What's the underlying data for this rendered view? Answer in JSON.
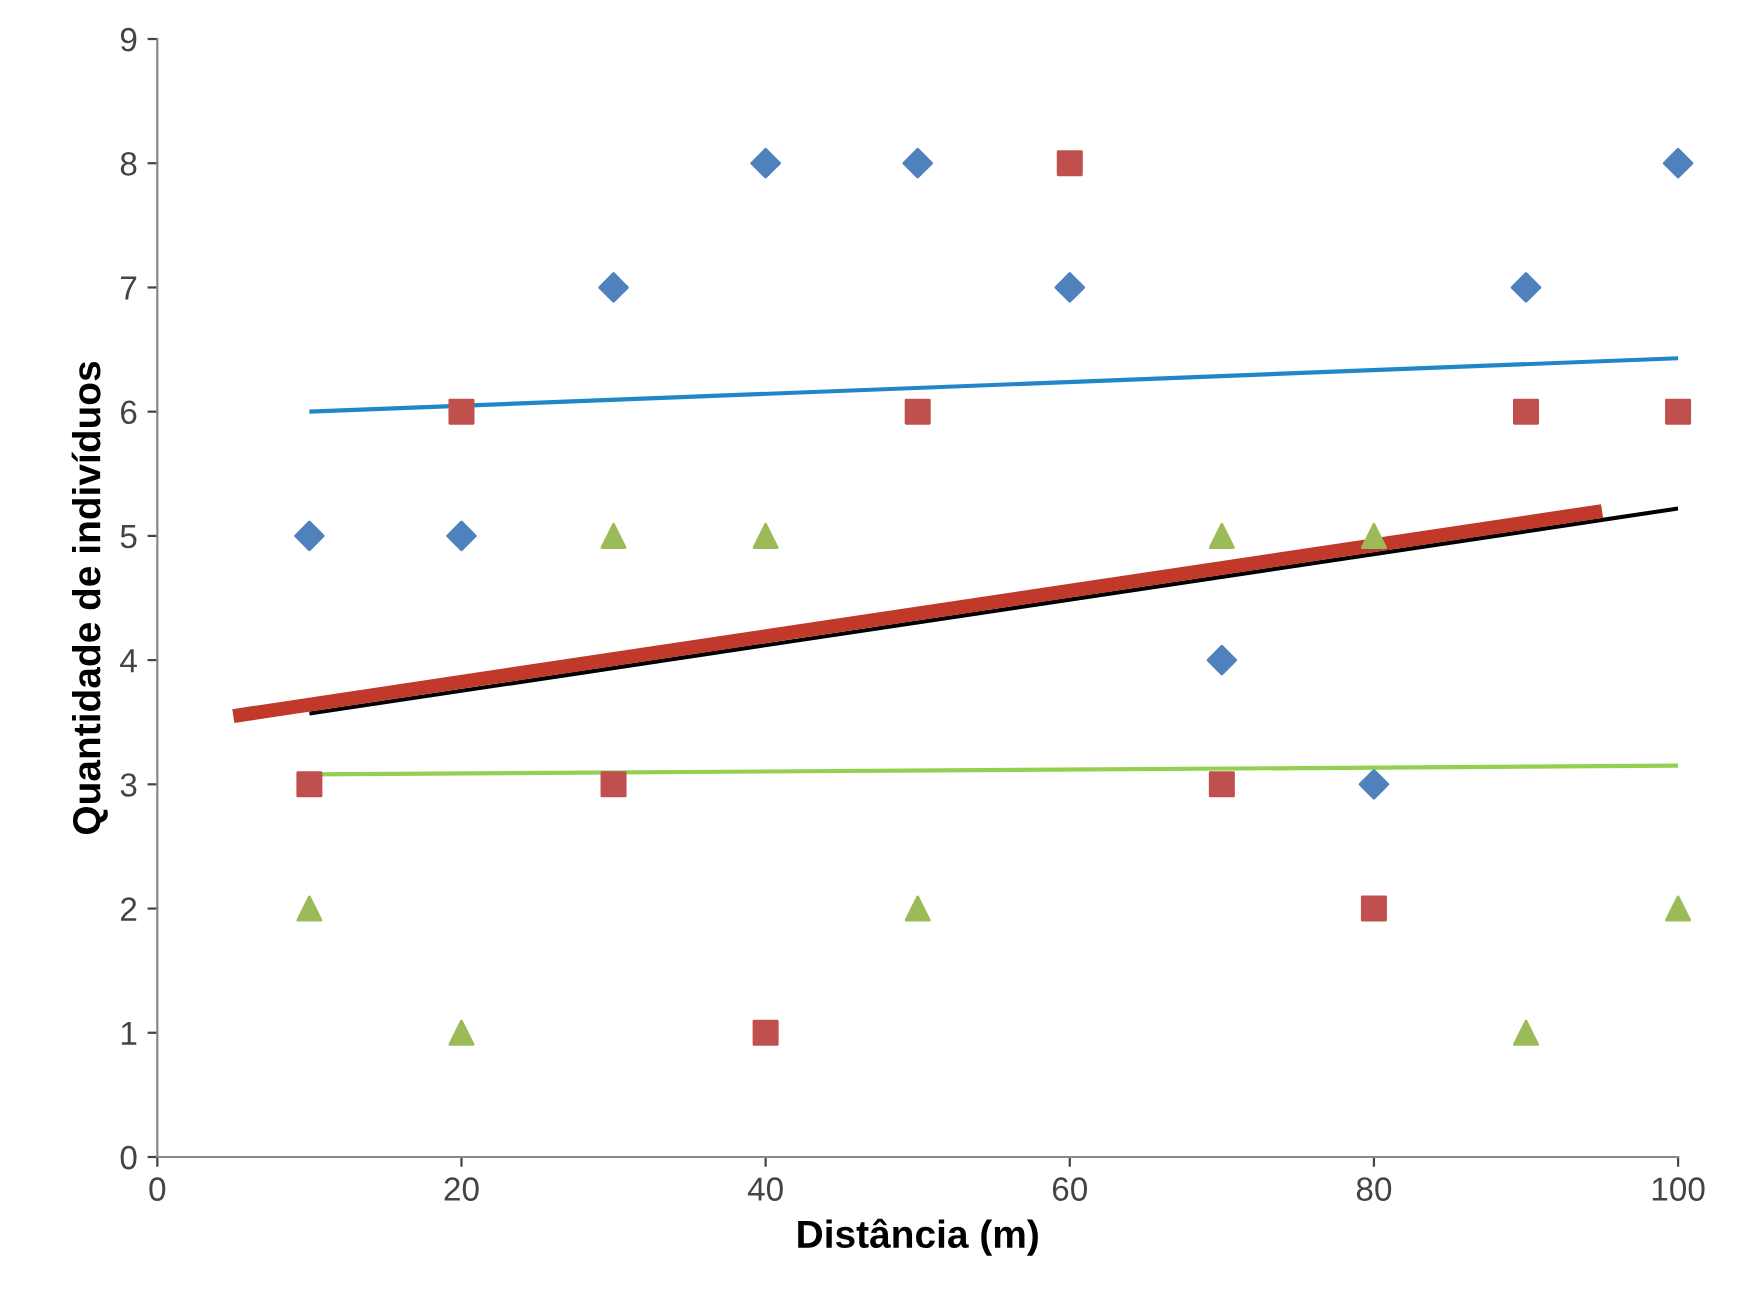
{
  "chart_data": {
    "type": "scatter",
    "xlabel": "Distância (m)",
    "ylabel": "Quantidade de indivíduos",
    "xlim": [
      0,
      100
    ],
    "xticks": [
      0,
      20,
      40,
      60,
      80,
      100
    ],
    "ylim": [
      0,
      9
    ],
    "yticks": [
      0,
      1,
      2,
      3,
      4,
      5,
      6,
      7,
      8,
      9
    ],
    "grid": false,
    "legend": false,
    "series": [
      {
        "marker": "diamond",
        "color": "#4f81bd",
        "x": [
          10,
          20,
          30,
          40,
          50,
          60,
          70,
          80,
          90,
          100
        ],
        "values": [
          5,
          5,
          7,
          8,
          8,
          7,
          4,
          3,
          7,
          8
        ]
      },
      {
        "marker": "square",
        "color": "#c0504d",
        "x": [
          10,
          20,
          30,
          40,
          50,
          60,
          70,
          80,
          90,
          100
        ],
        "values": [
          3,
          6,
          3,
          1,
          6,
          8,
          3,
          2,
          6,
          6
        ]
      },
      {
        "marker": "triangle",
        "color": "#9bbb59",
        "x": [
          10,
          20,
          30,
          40,
          50,
          70,
          80,
          90,
          100
        ],
        "values": [
          2,
          1,
          5,
          5,
          2,
          5,
          5,
          1,
          2
        ]
      },
      {
        "type": "line",
        "marker": "none",
        "color": "#1f86c8",
        "x": [
          10,
          100
        ],
        "values": [
          6.0,
          6.43
        ]
      },
      {
        "type": "line",
        "marker": "none",
        "color": "#000000",
        "x": [
          10,
          100
        ],
        "values": [
          3.57,
          5.22
        ]
      },
      {
        "type": "line",
        "marker": "none",
        "color": "#92d050",
        "x": [
          10,
          100
        ],
        "values": [
          3.08,
          3.15
        ]
      },
      {
        "type": "line",
        "marker": "none",
        "color": "#c0392b",
        "x": [
          5,
          95
        ],
        "values": [
          3.55,
          5.2
        ]
      }
    ]
  }
}
